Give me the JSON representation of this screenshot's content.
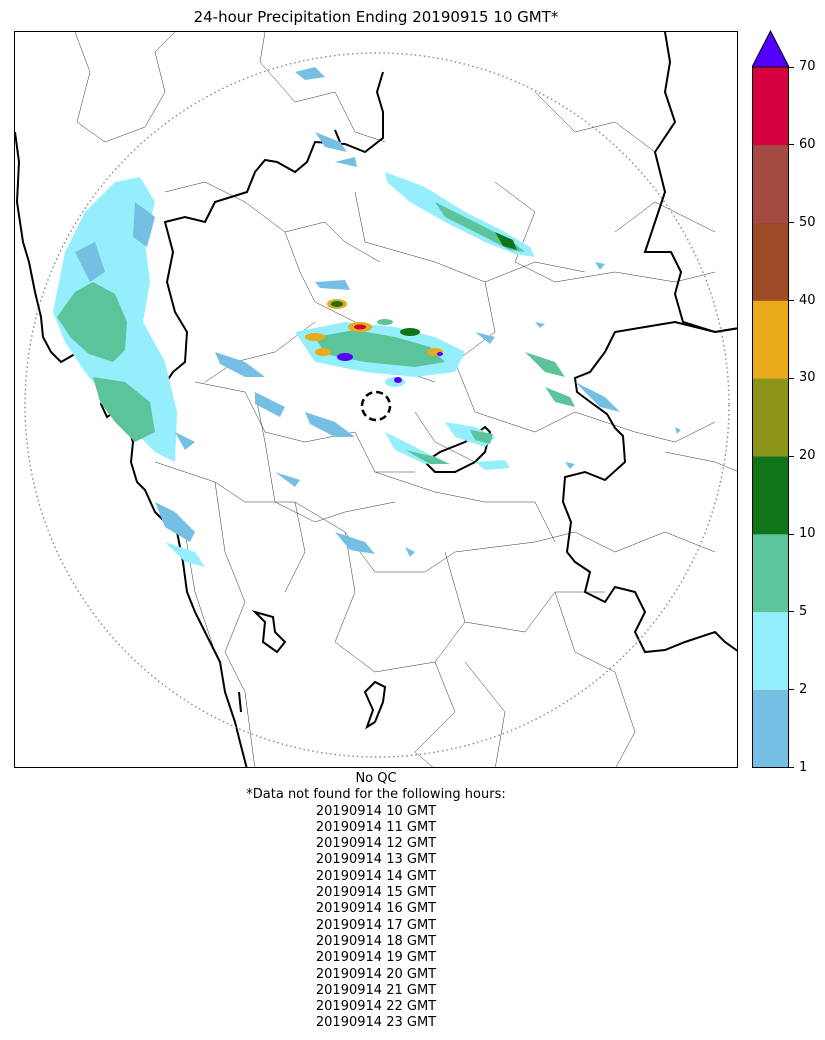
{
  "title": "24-hour Precipitation Ending 20190915 10 GMT*",
  "colorbar": {
    "levels": [
      "1",
      "2",
      "5",
      "10",
      "20",
      "30",
      "40",
      "50",
      "60",
      "70"
    ],
    "colors": [
      "#74bfe3",
      "#94eefc",
      "#5cc49a",
      "#107519",
      "#8c9419",
      "#e8ab19",
      "#9e4a24",
      "#a54a40",
      "#d40040"
    ],
    "over_color": "#5500ff"
  },
  "footer": {
    "qc": "No QC",
    "note": "*Data not found for the following hours:",
    "hours": [
      "20190914 10 GMT",
      "20190914 11 GMT",
      "20190914 12 GMT",
      "20190914 13 GMT",
      "20190914 14 GMT",
      "20190914 15 GMT",
      "20190914 16 GMT",
      "20190914 17 GMT",
      "20190914 18 GMT",
      "20190914 19 GMT",
      "20190914 20 GMT",
      "20190914 21 GMT",
      "20190914 22 GMT",
      "20190914 23 GMT"
    ]
  },
  "map": {
    "range_ring": "dotted",
    "radar_site_marker": "dashed-circle",
    "legend_placement": "right"
  }
}
